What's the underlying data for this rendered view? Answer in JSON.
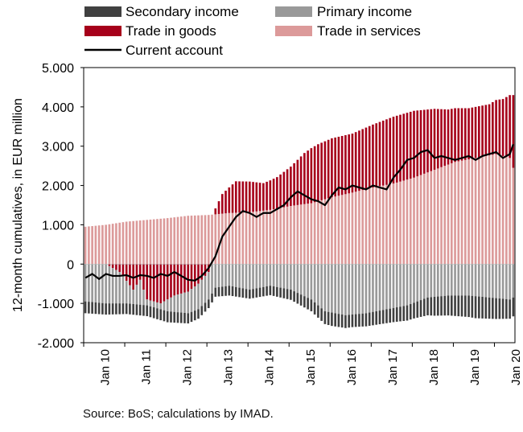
{
  "chart_data": {
    "type": "bar",
    "stacked": true,
    "frequency": "monthly",
    "start": "Jan 10",
    "ylabel": "12-month cumulatives, in EUR million",
    "ylim": [
      -2000,
      5000
    ],
    "yticks": [
      5000,
      4000,
      3000,
      2000,
      1000,
      0,
      -1000,
      -2000
    ],
    "ytick_labels": [
      "5.000",
      "4.000",
      "3.000",
      "2.000",
      "1.000",
      "0",
      "-1.000",
      "-2.000"
    ],
    "xtick_labels": [
      "Jan 10",
      "Jan 11",
      "Jan 12",
      "Jan 13",
      "Jan 14",
      "Jan 15",
      "Jan 16",
      "Jan 17",
      "Jan 18",
      "Jan 19",
      "Jan 20"
    ],
    "legend_position": "top",
    "colors": {
      "secondary_income": "#404040",
      "primary_income": "#999999",
      "trade_in_goods": "#a6001a",
      "trade_in_services": "#dc9a9a",
      "current_account": "#000000"
    },
    "series_names": {
      "secondary_income": "Secondary income",
      "primary_income": "Primary income",
      "trade_in_goods": "Trade in goods",
      "trade_in_services": "Trade in services",
      "current_account": "Current account"
    },
    "anchors": {
      "trade_in_services": [
        [
          0,
          950
        ],
        [
          6,
          1000
        ],
        [
          12,
          1080
        ],
        [
          24,
          1170
        ],
        [
          30,
          1230
        ],
        [
          36,
          1250
        ],
        [
          42,
          1300
        ],
        [
          48,
          1320
        ],
        [
          54,
          1380
        ],
        [
          60,
          1480
        ],
        [
          66,
          1550
        ],
        [
          72,
          1700
        ],
        [
          78,
          1820
        ],
        [
          84,
          1950
        ],
        [
          90,
          2050
        ],
        [
          96,
          2200
        ],
        [
          102,
          2400
        ],
        [
          108,
          2600
        ],
        [
          114,
          2700
        ],
        [
          120,
          2800
        ],
        [
          124,
          2700
        ],
        [
          125,
          2450
        ]
      ],
      "trade_in_goods": [
        [
          0,
          0
        ],
        [
          6,
          0
        ],
        [
          10,
          -200
        ],
        [
          14,
          -650
        ],
        [
          16,
          -400
        ],
        [
          18,
          -900
        ],
        [
          22,
          -1000
        ],
        [
          26,
          -800
        ],
        [
          30,
          -700
        ],
        [
          33,
          -500
        ],
        [
          36,
          -200
        ],
        [
          37,
          0
        ],
        [
          38,
          150
        ],
        [
          40,
          500
        ],
        [
          44,
          800
        ],
        [
          48,
          780
        ],
        [
          52,
          700
        ],
        [
          56,
          800
        ],
        [
          60,
          1000
        ],
        [
          64,
          1300
        ],
        [
          66,
          1400
        ],
        [
          68,
          1450
        ],
        [
          72,
          1500
        ],
        [
          78,
          1500
        ],
        [
          84,
          1600
        ],
        [
          90,
          1700
        ],
        [
          96,
          1700
        ],
        [
          102,
          1550
        ],
        [
          106,
          1400
        ],
        [
          112,
          1300
        ],
        [
          118,
          1300
        ],
        [
          122,
          1450
        ],
        [
          124,
          1600
        ],
        [
          125,
          1850
        ]
      ],
      "primary_income": [
        [
          0,
          -950
        ],
        [
          6,
          -1000
        ],
        [
          12,
          -1000
        ],
        [
          18,
          -1050
        ],
        [
          24,
          -1200
        ],
        [
          30,
          -1250
        ],
        [
          33,
          -1150
        ],
        [
          36,
          -900
        ],
        [
          38,
          -600
        ],
        [
          42,
          -550
        ],
        [
          48,
          -650
        ],
        [
          54,
          -550
        ],
        [
          60,
          -650
        ],
        [
          66,
          -900
        ],
        [
          70,
          -1200
        ],
        [
          76,
          -1300
        ],
        [
          82,
          -1250
        ],
        [
          88,
          -1150
        ],
        [
          94,
          -1050
        ],
        [
          100,
          -850
        ],
        [
          106,
          -800
        ],
        [
          112,
          -800
        ],
        [
          118,
          -850
        ],
        [
          124,
          -900
        ],
        [
          125,
          -850
        ]
      ],
      "secondary_income": [
        [
          0,
          -300
        ],
        [
          12,
          -270
        ],
        [
          24,
          -280
        ],
        [
          30,
          -260
        ],
        [
          36,
          -220
        ],
        [
          42,
          -250
        ],
        [
          48,
          -230
        ],
        [
          54,
          -240
        ],
        [
          60,
          -260
        ],
        [
          66,
          -300
        ],
        [
          72,
          -340
        ],
        [
          78,
          -320
        ],
        [
          84,
          -340
        ],
        [
          90,
          -360
        ],
        [
          96,
          -400
        ],
        [
          102,
          -480
        ],
        [
          108,
          -520
        ],
        [
          114,
          -560
        ],
        [
          120,
          -530
        ],
        [
          125,
          -480
        ]
      ],
      "current_account": [
        [
          0,
          -350
        ],
        [
          2,
          -250
        ],
        [
          4,
          -380
        ],
        [
          6,
          -250
        ],
        [
          8,
          -300
        ],
        [
          10,
          -300
        ],
        [
          12,
          -280
        ],
        [
          14,
          -350
        ],
        [
          16,
          -280
        ],
        [
          18,
          -300
        ],
        [
          20,
          -350
        ],
        [
          22,
          -250
        ],
        [
          24,
          -300
        ],
        [
          26,
          -200
        ],
        [
          28,
          -300
        ],
        [
          30,
          -400
        ],
        [
          32,
          -420
        ],
        [
          34,
          -300
        ],
        [
          36,
          -100
        ],
        [
          38,
          200
        ],
        [
          40,
          700
        ],
        [
          42,
          950
        ],
        [
          44,
          1200
        ],
        [
          46,
          1350
        ],
        [
          48,
          1300
        ],
        [
          50,
          1200
        ],
        [
          52,
          1300
        ],
        [
          54,
          1300
        ],
        [
          56,
          1400
        ],
        [
          58,
          1500
        ],
        [
          60,
          1700
        ],
        [
          62,
          1850
        ],
        [
          64,
          1750
        ],
        [
          66,
          1650
        ],
        [
          68,
          1600
        ],
        [
          70,
          1500
        ],
        [
          72,
          1750
        ],
        [
          74,
          1950
        ],
        [
          76,
          1900
        ],
        [
          78,
          2000
        ],
        [
          80,
          1950
        ],
        [
          82,
          1900
        ],
        [
          84,
          2000
        ],
        [
          86,
          1950
        ],
        [
          88,
          1900
        ],
        [
          90,
          2200
        ],
        [
          92,
          2400
        ],
        [
          94,
          2650
        ],
        [
          96,
          2700
        ],
        [
          98,
          2850
        ],
        [
          100,
          2900
        ],
        [
          102,
          2700
        ],
        [
          104,
          2750
        ],
        [
          106,
          2700
        ],
        [
          108,
          2650
        ],
        [
          110,
          2700
        ],
        [
          112,
          2750
        ],
        [
          114,
          2650
        ],
        [
          116,
          2750
        ],
        [
          118,
          2800
        ],
        [
          120,
          2850
        ],
        [
          122,
          2700
        ],
        [
          124,
          2800
        ],
        [
          125,
          3050
        ]
      ]
    }
  },
  "legend": {
    "secondary_income": "Secondary income",
    "primary_income": "Primary income",
    "trade_in_goods": "Trade in goods",
    "trade_in_services": "Trade in services",
    "current_account": "Current account"
  },
  "source_note": "Source: BoS; calculations by IMAD."
}
